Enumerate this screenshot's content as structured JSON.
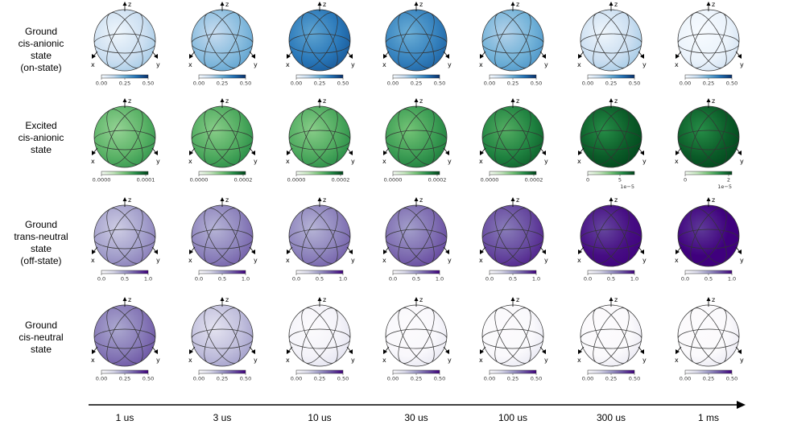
{
  "rows": [
    {
      "label_lines": [
        "Ground",
        "cis-anionic",
        "state",
        "(on-state)"
      ],
      "colormap": "blues",
      "cbar_ticks": [
        "0.00",
        "0.25",
        "0.50"
      ],
      "cbar_range": [
        0,
        0.5
      ],
      "cbar_offset": "",
      "intensity": [
        0.22,
        0.42,
        0.72,
        0.68,
        0.48,
        0.22,
        0.06
      ]
    },
    {
      "label_lines": [
        "Excited",
        "cis-anionic",
        "state"
      ],
      "colormap": "greens",
      "cbar_ticks_per_panel": [
        [
          "0.0000",
          "0.0001"
        ],
        [
          "0.0000",
          "0.0002"
        ],
        [
          "0.0000",
          "0.0002"
        ],
        [
          "0.0000",
          "0.0002"
        ],
        [
          "0.0000",
          "0.0002"
        ],
        [
          "0",
          "5"
        ],
        [
          "0",
          "2"
        ]
      ],
      "cbar_offset_per_panel": [
        "",
        "",
        "",
        "",
        "",
        "1e−5",
        "1e−5"
      ],
      "intensity": [
        0.58,
        0.62,
        0.62,
        0.68,
        0.78,
        0.92,
        0.92
      ]
    },
    {
      "label_lines": [
        "Ground",
        "trans-neutral",
        "state",
        "(off-state)"
      ],
      "colormap": "purples",
      "cbar_ticks": [
        "0.0",
        "0.5",
        "1.0"
      ],
      "cbar_range": [
        0,
        1
      ],
      "cbar_offset": "",
      "intensity": [
        0.48,
        0.58,
        0.58,
        0.66,
        0.78,
        0.96,
        1.0
      ]
    },
    {
      "label_lines": [
        "Ground",
        "cis-neutral",
        "state"
      ],
      "colormap": "purples",
      "cbar_ticks": [
        "0.00",
        "0.25",
        "0.50"
      ],
      "cbar_range": [
        0,
        0.5
      ],
      "cbar_offset": "",
      "intensity": [
        0.62,
        0.36,
        0.06,
        0.02,
        0.015,
        0.01,
        0.01
      ]
    }
  ],
  "times": [
    "1 us",
    "3 us",
    "10 us",
    "30 us",
    "100 us",
    "300 us",
    "1 ms"
  ],
  "axis_labels": {
    "x": "x",
    "y": "y",
    "z": "z"
  },
  "colors": {
    "blues": [
      "#f7fbff",
      "#c6dbef",
      "#6baed6",
      "#2171b5",
      "#08306b"
    ],
    "greens": [
      "#f7fcf5",
      "#c7e9c0",
      "#74c476",
      "#238b45",
      "#00441b"
    ],
    "purples": [
      "#fcfbfd",
      "#dadaeb",
      "#9e9ac8",
      "#6a51a3",
      "#3f007d"
    ],
    "arrow": "#000000",
    "wire": "#333333"
  }
}
